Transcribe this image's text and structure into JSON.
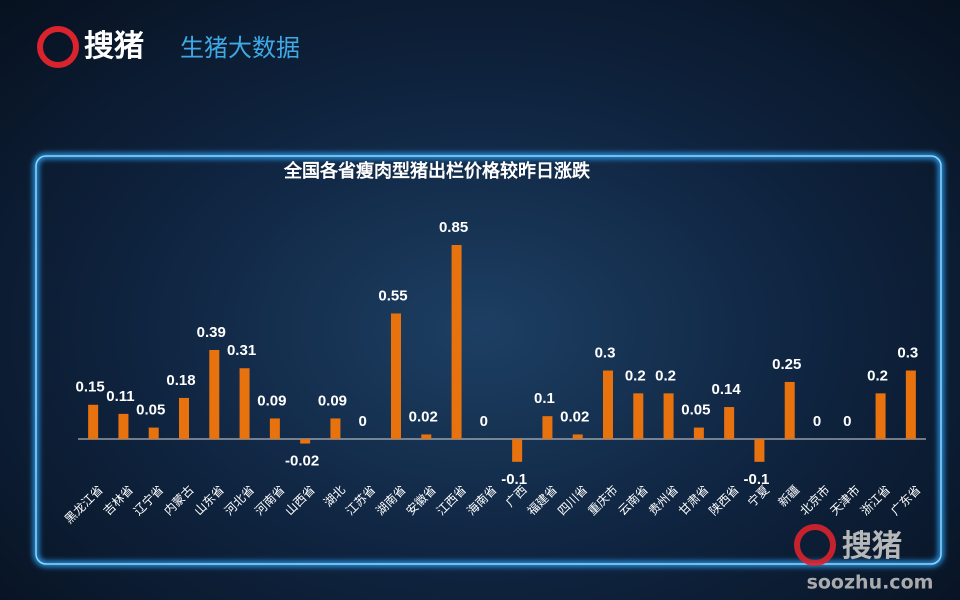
{
  "header": {
    "logo_text": "搜猪",
    "subtitle": "生猪大数据"
  },
  "watermark": {
    "logo_text": "搜猪",
    "url": "soozhu.com"
  },
  "chart_data": {
    "type": "bar",
    "title": "全国各省瘦肉型猪出栏价格较昨日涨跌",
    "categories": [
      "黑龙江省",
      "吉林省",
      "辽宁省",
      "内蒙古",
      "山东省",
      "河北省",
      "河南省",
      "山西省",
      "湖北",
      "江苏省",
      "湖南省",
      "安徽省",
      "江西省",
      "海南省",
      "广西",
      "福建省",
      "四川省",
      "重庆市",
      "云南省",
      "贵州省",
      "甘肃省",
      "陕西省",
      "宁夏",
      "新疆",
      "北京市",
      "天津市",
      "浙江省",
      "广东省"
    ],
    "values": [
      0.15,
      0.11,
      0.05,
      0.18,
      0.39,
      0.31,
      0.09,
      -0.02,
      0.09,
      0,
      0.55,
      0.02,
      0.85,
      0,
      -0.1,
      0.1,
      0.02,
      0.3,
      0.2,
      0.2,
      0.05,
      0.14,
      -0.1,
      0.25,
      0,
      0,
      0.2,
      0.3
    ],
    "color": "#e8730e"
  }
}
